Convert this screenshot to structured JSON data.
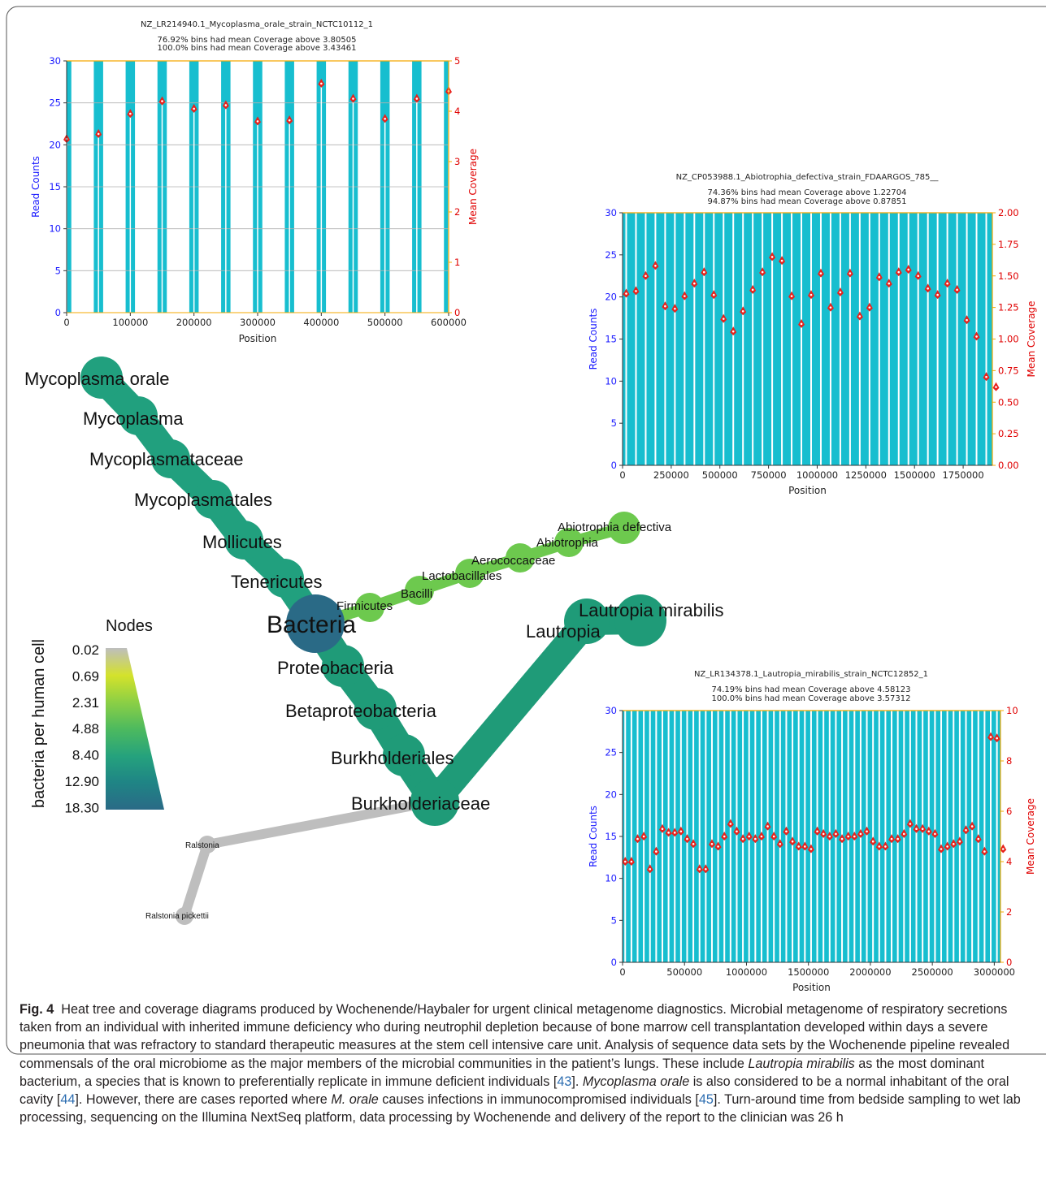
{
  "figure": {
    "fig_label": "Fig. 4",
    "caption": {
      "p1": "Heat tree and coverage diagrams produced by Wochenende/Haybaler for urgent clinical metagenome diagnostics. Microbial metagenome of respiratory secretions taken from an individual with inherited immune deficiency who during neutrophil depletion because of bone marrow cell transplantation developed within days a severe pneumonia that was refractory to standard therapeutic measures at the stem cell intensive care unit. Analysis of sequence data sets by the Wochenende pipeline revealed commensals of the oral microbiome as the major members of the microbial communities in the patient’s lungs. These include ",
      "i1": "Lautropia mirabilis",
      "p2": " as the most dominant bacterium, a species that is known to preferentially replicate in immune deficient individuals [",
      "r1": "43",
      "p3": "]. ",
      "i2": "Mycoplasma orale",
      "p4": " is also considered to be a normal inhabitant of the oral cavity [",
      "r2": "44",
      "p5": "]. However, there are cases reported where ",
      "i3": "M. orale",
      "p6": " causes infections in immunocompromised individuals [",
      "r3": "45",
      "p7": "]. Turn-around time from bedside sampling to wet lab processing, sequencing on the Illumina NextSeq platform, data processing by Wochenende and delivery of the report to the clinician was 26 h"
    }
  },
  "colors": {
    "bar": "#17becf",
    "marker": "#e8221c",
    "axis_spine": "#f5a800",
    "left_axis_label": "#1a1aff",
    "right_axis_label": "#e00000",
    "node_gray": "#bebebe"
  },
  "chart_data": [
    {
      "type": "bar",
      "title": "NZ_LR214940.1_Mycoplasma_orale_strain_NCTC10112_1",
      "subtitle_1": "76.92% bins had mean Coverage above 3.80505",
      "subtitle_2": "100.0% bins had mean Coverage above 3.43461",
      "xlabel": "Position",
      "ylabel": "Read Counts",
      "y2label": "Mean Coverage",
      "xlim": [
        0,
        600000
      ],
      "ylim": [
        0,
        30
      ],
      "y2lim": [
        0,
        5
      ],
      "xticks": [
        "0",
        "100000",
        "200000",
        "300000",
        "400000",
        "500000",
        "600000"
      ],
      "yticks": [
        "0",
        "5",
        "10",
        "15",
        "20",
        "25",
        "30"
      ],
      "y2ticks": [
        "0",
        "1",
        "2",
        "3",
        "4",
        "5"
      ],
      "bars_x": [
        0,
        50000,
        100000,
        150000,
        200000,
        250000,
        300000,
        350000,
        400000,
        450000,
        500000,
        550000,
        600000
      ],
      "mean_coverage": [
        3.45,
        3.55,
        3.95,
        4.2,
        4.05,
        4.12,
        3.8,
        3.82,
        4.55,
        4.25,
        3.85,
        4.25,
        4.4
      ]
    },
    {
      "type": "bar",
      "title": "NZ_CP053988.1_Abiotrophia_defectiva_strain_FDAARGOS_785__",
      "subtitle_1": "74.36% bins had mean Coverage above 1.22704",
      "subtitle_2": "94.87% bins had mean Coverage above 0.87851",
      "xlabel": "Position",
      "ylabel": "Read Counts",
      "y2label": "Mean Coverage",
      "xlim": [
        0,
        1900000
      ],
      "ylim": [
        0,
        30
      ],
      "y2lim": [
        0,
        2
      ],
      "xticks": [
        "0",
        "250000",
        "500000",
        "750000",
        "1000000",
        "1250000",
        "1500000",
        "1750000"
      ],
      "xtick_values": [
        0,
        250000,
        500000,
        750000,
        1000000,
        1250000,
        1500000,
        1750000
      ],
      "yticks": [
        "0",
        "5",
        "10",
        "15",
        "20",
        "25",
        "30"
      ],
      "y2ticks": [
        "0.00",
        "0.25",
        "0.50",
        "0.75",
        "1.00",
        "1.25",
        "1.50",
        "1.75",
        "2.00"
      ],
      "bar_spacing": 50000,
      "mean_coverage": [
        1.36,
        1.38,
        1.5,
        1.58,
        1.26,
        1.24,
        1.34,
        1.44,
        1.53,
        1.35,
        1.16,
        1.06,
        1.22,
        1.39,
        1.53,
        1.65,
        1.62,
        1.34,
        1.12,
        1.35,
        1.52,
        1.25,
        1.37,
        1.52,
        1.18,
        1.25,
        1.49,
        1.44,
        1.53,
        1.55,
        1.5,
        1.4,
        1.35,
        1.44,
        1.39,
        1.15,
        1.02,
        0.7,
        0.62
      ]
    },
    {
      "type": "bar",
      "title": "NZ_LR134378.1_Lautropia_mirabilis_strain_NCTC12852_1",
      "subtitle_1": "74.19% bins had mean Coverage above 4.58123",
      "subtitle_2": "100.0% bins had mean Coverage above 3.57312",
      "xlabel": "Position",
      "ylabel": "Read Counts",
      "y2label": "Mean Coverage",
      "xlim": [
        0,
        3050000
      ],
      "ylim": [
        0,
        30
      ],
      "y2lim": [
        0,
        10
      ],
      "xticks": [
        "0",
        "500000",
        "1000000",
        "1500000",
        "2000000",
        "2500000",
        "3000000"
      ],
      "xtick_values": [
        0,
        500000,
        1000000,
        1500000,
        2000000,
        2500000,
        3000000
      ],
      "yticks": [
        "0",
        "5",
        "10",
        "15",
        "20",
        "25",
        "30"
      ],
      "y2ticks": [
        "0",
        "2",
        "4",
        "6",
        "8",
        "10"
      ],
      "bar_spacing": 50000,
      "mean_coverage": [
        4.0,
        4.0,
        4.9,
        5.0,
        3.7,
        4.4,
        5.3,
        5.15,
        5.15,
        5.2,
        4.9,
        4.7,
        3.7,
        3.7,
        4.7,
        4.6,
        5.0,
        5.5,
        5.2,
        4.9,
        5.0,
        4.9,
        5.0,
        5.4,
        5.0,
        4.7,
        5.2,
        4.8,
        4.6,
        4.6,
        4.5,
        5.2,
        5.1,
        5.0,
        5.1,
        4.9,
        5.0,
        5.0,
        5.1,
        5.2,
        4.8,
        4.6,
        4.6,
        4.9,
        4.9,
        5.1,
        5.5,
        5.3,
        5.3,
        5.2,
        5.1,
        4.5,
        4.6,
        4.7,
        4.8,
        5.25,
        5.4,
        4.9,
        4.4,
        8.95,
        8.9,
        4.5
      ]
    }
  ],
  "heat_tree": {
    "legend_title": "Nodes",
    "legend_axis_label": "bacteria per human cell",
    "legend_values": [
      "0.02",
      "0.69",
      "2.31",
      "4.88",
      "8.40",
      "12.90",
      "18.30"
    ],
    "legend_colors": [
      "#bebebe",
      "#d4e22b",
      "#8ed044",
      "#4dba5e",
      "#25a27d",
      "#1f8585",
      "#2a6a86"
    ],
    "nodes": [
      {
        "id": "bacteria",
        "label": "Bacteria",
        "color": "#2a6a86"
      },
      {
        "id": "tenericutes",
        "label": "Tenericutes",
        "color": "#21a07e"
      },
      {
        "id": "mollicutes",
        "label": "Mollicutes",
        "color": "#21a07e"
      },
      {
        "id": "mycoplasmatales",
        "label": "Mycoplasmatales",
        "color": "#21a07e"
      },
      {
        "id": "mycoplasmataceae",
        "label": "Mycoplasmataceae",
        "color": "#21a07e"
      },
      {
        "id": "mycoplasma",
        "label": "Mycoplasma",
        "color": "#21a07e"
      },
      {
        "id": "mycoplasma_orale",
        "label": "Mycoplasma orale",
        "color": "#21a07e"
      },
      {
        "id": "firmicutes",
        "label": "Firmicutes",
        "color": "#6dc94e"
      },
      {
        "id": "bacilli",
        "label": "Bacilli",
        "color": "#6dc94e"
      },
      {
        "id": "lactobacillales",
        "label": "Lactobacillales",
        "color": "#6dc94e"
      },
      {
        "id": "aerococcaceae",
        "label": "Aerococcaceae",
        "color": "#6dc94e"
      },
      {
        "id": "abiotrophia",
        "label": "Abiotrophia",
        "color": "#6dc94e"
      },
      {
        "id": "abiotrophia_defectiva",
        "label": "Abiotrophia defectiva",
        "color": "#6dc94e"
      },
      {
        "id": "proteobacteria",
        "label": "Proteobacteria",
        "color": "#1f9b78"
      },
      {
        "id": "betaproteobacteria",
        "label": "Betaproteobacteria",
        "color": "#1f9b78"
      },
      {
        "id": "burkholderiales",
        "label": "Burkholderiales",
        "color": "#1f9b78"
      },
      {
        "id": "burkholderiaceae",
        "label": "Burkholderiaceae",
        "color": "#1f9b78"
      },
      {
        "id": "lautropia",
        "label": "Lautropia",
        "color": "#1f9b78"
      },
      {
        "id": "lautropia_mirabilis",
        "label": "Lautropia mirabilis",
        "color": "#1f9b78"
      },
      {
        "id": "ralstonia",
        "label": "Ralstonia",
        "color": "#bebebe"
      },
      {
        "id": "ralstonia_pickettii",
        "label": "Ralstonia pickettii",
        "color": "#bebebe"
      }
    ]
  }
}
